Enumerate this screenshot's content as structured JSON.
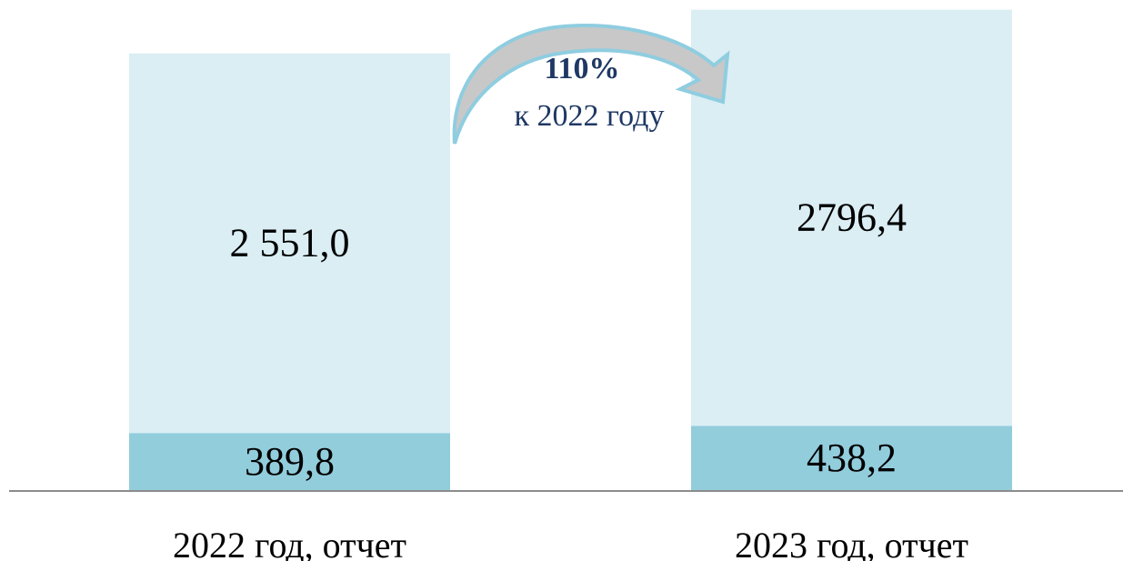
{
  "chart_data": {
    "type": "stacked_bar",
    "categories": [
      "2022 год, отчет",
      "2023 год, отчет"
    ],
    "series": [
      {
        "color": "#92cddc",
        "values": [
          389.8,
          438.2
        ],
        "value_labels": [
          "389,8",
          "438,2"
        ]
      },
      {
        "color": "#daeef3",
        "values": [
          2551.0,
          2796.4
        ],
        "value_labels": [
          "2 551,0",
          "2796,4"
        ]
      }
    ],
    "ylim": [
      0,
      3300
    ],
    "annotations": [
      "110%",
      "к 2022 году"
    ]
  }
}
